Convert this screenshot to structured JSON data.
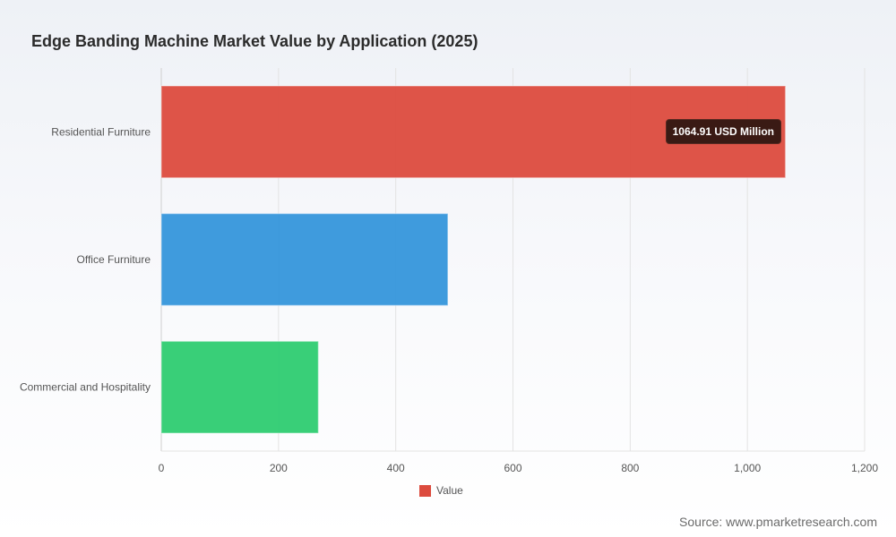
{
  "page": {
    "title": "Edge Banding Machine Market Value by Application (2025)",
    "source": "Source: www.pmarketresearch.com",
    "tooltip_text": "1064.91 USD Million"
  },
  "chart_data": {
    "type": "bar",
    "orientation": "horizontal",
    "title": "Edge Banding Machine Market Value by Application (2025)",
    "categories": [
      "Residential Furniture",
      "Office Furniture",
      "Commercial and Hospitality"
    ],
    "series": [
      {
        "name": "Value",
        "values": [
          1064.91,
          489,
          268
        ],
        "colors": [
          "#dc4b3e",
          "#3596db",
          "#2ecc71"
        ]
      }
    ],
    "xlim": [
      0,
      1200
    ],
    "xticks": [
      "0",
      "200",
      "400",
      "600",
      "800",
      "1,000",
      "1,200"
    ],
    "xtick_values": [
      0,
      200,
      400,
      600,
      800,
      1000,
      1200
    ],
    "grid": true,
    "legend": {
      "position": "bottom",
      "label": "Value",
      "color": "#dc4b3e"
    },
    "annotations": [
      {
        "category": "Residential Furniture",
        "text": "1064.91 USD Million"
      }
    ]
  }
}
